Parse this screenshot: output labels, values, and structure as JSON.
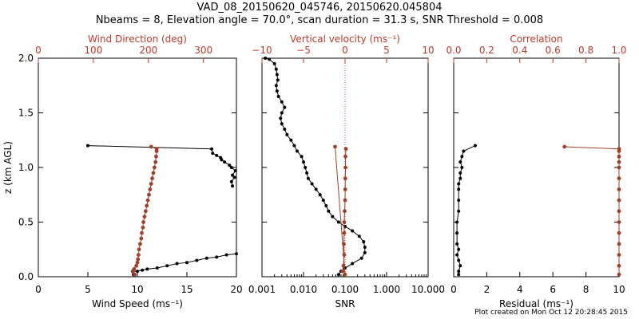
{
  "title": "VAD_08_20150620_045746, 20150620.045804",
  "subtitle": "Nbeams = 8, Elevation angle = 70.0°, scan duration = 31.3 s, SNR Threshold = 0.008",
  "footer": "Plot created on Mon Oct 12 20:28:45 2015",
  "colors": {
    "primary": "#000000",
    "accent": "#c0392b",
    "marker": "#a0402a"
  },
  "chart_data": [
    {
      "type": "line",
      "ylabel": "z (km AGL)",
      "ylim": [
        0,
        2
      ],
      "yticks": [
        "0.0",
        "0.5",
        "1.0",
        "1.5",
        "2.0"
      ],
      "x_bottom": {
        "label": "Wind Speed (ms⁻¹)",
        "lim": [
          0,
          20
        ],
        "ticks": [
          "0",
          "5",
          "10",
          "15",
          "20"
        ]
      },
      "x_top": {
        "label": "Wind Direction (deg)",
        "lim": [
          0,
          360
        ],
        "ticks": [
          "0",
          "100",
          "200",
          "300"
        ]
      },
      "series": [
        {
          "axis": "bottom",
          "color": "#000000",
          "points": [
            [
              20.0,
              0.21
            ],
            [
              19.0,
              0.2
            ],
            [
              18.0,
              0.18
            ],
            [
              17.0,
              0.17
            ],
            [
              16.0,
              0.15
            ],
            [
              15.0,
              0.13
            ],
            [
              14.0,
              0.12
            ],
            [
              13.0,
              0.1
            ],
            [
              12.0,
              0.08
            ],
            [
              11.0,
              0.07
            ],
            [
              10.5,
              0.06
            ],
            [
              10.0,
              0.05
            ],
            [
              9.5,
              0.05
            ],
            [
              9.6,
              0.02
            ],
            [
              19.6,
              0.83
            ],
            [
              19.5,
              0.87
            ],
            [
              19.8,
              0.91
            ],
            [
              19.6,
              0.93
            ],
            [
              19.9,
              0.97
            ],
            [
              19.5,
              1.0
            ],
            [
              19.3,
              1.02
            ],
            [
              18.8,
              1.05
            ],
            [
              18.5,
              1.07
            ],
            [
              18.4,
              1.09
            ],
            [
              18.0,
              1.11
            ],
            [
              17.6,
              1.13
            ],
            [
              17.5,
              1.17
            ],
            [
              5.0,
              1.2
            ]
          ]
        },
        {
          "axis": "top",
          "color": "#a0402a",
          "points": [
            [
              175,
              0.02
            ],
            [
              172,
              0.05
            ],
            [
              174,
              0.07
            ],
            [
              178,
              0.1
            ],
            [
              180,
              0.13
            ],
            [
              181,
              0.16
            ],
            [
              182,
              0.2
            ],
            [
              183,
              0.25
            ],
            [
              185,
              0.3
            ],
            [
              187,
              0.35
            ],
            [
              188,
              0.4
            ],
            [
              190,
              0.45
            ],
            [
              191,
              0.5
            ],
            [
              193,
              0.55
            ],
            [
              195,
              0.6
            ],
            [
              197,
              0.65
            ],
            [
              199,
              0.7
            ],
            [
              201,
              0.75
            ],
            [
              203,
              0.8
            ],
            [
              205,
              0.85
            ],
            [
              207,
              0.9
            ],
            [
              209,
              0.95
            ],
            [
              211,
              1.0
            ],
            [
              213,
              1.05
            ],
            [
              214,
              1.1
            ],
            [
              215,
              1.15
            ],
            [
              215,
              1.17
            ],
            [
              205,
              1.19
            ]
          ]
        }
      ]
    },
    {
      "type": "line",
      "ylim": [
        0,
        2
      ],
      "x_bottom": {
        "label": "SNR",
        "lim": [
          0.001,
          10
        ],
        "scale": "log",
        "ticks": [
          "0.001",
          "0.010",
          "0.100",
          "1.000",
          "10.000"
        ]
      },
      "x_top": {
        "label": "Vertical velocity (ms⁻¹)",
        "lim": [
          -10,
          10
        ],
        "ticks": [
          "−10",
          "−5",
          "0",
          "5",
          "10"
        ]
      },
      "series": [
        {
          "axis": "bottom",
          "color": "#000000",
          "points": [
            [
              0.07,
              0.02
            ],
            [
              0.08,
              0.05
            ],
            [
              0.1,
              0.08
            ],
            [
              0.15,
              0.12
            ],
            [
              0.25,
              0.17
            ],
            [
              0.3,
              0.22
            ],
            [
              0.3,
              0.27
            ],
            [
              0.28,
              0.32
            ],
            [
              0.22,
              0.37
            ],
            [
              0.15,
              0.42
            ],
            [
              0.1,
              0.46
            ],
            [
              0.07,
              0.5
            ],
            [
              0.05,
              0.55
            ],
            [
              0.04,
              0.6
            ],
            [
              0.035,
              0.65
            ],
            [
              0.03,
              0.7
            ],
            [
              0.025,
              0.75
            ],
            [
              0.02,
              0.8
            ],
            [
              0.016,
              0.85
            ],
            [
              0.013,
              0.9
            ],
            [
              0.012,
              0.95
            ],
            [
              0.011,
              1.0
            ],
            [
              0.01,
              1.05
            ],
            [
              0.009,
              1.1
            ],
            [
              0.007,
              1.15
            ],
            [
              0.006,
              1.2
            ],
            [
              0.005,
              1.25
            ],
            [
              0.004,
              1.3
            ],
            [
              0.0035,
              1.35
            ],
            [
              0.003,
              1.4
            ],
            [
              0.0028,
              1.45
            ],
            [
              0.003,
              1.5
            ],
            [
              0.0035,
              1.55
            ],
            [
              0.003,
              1.6
            ],
            [
              0.0025,
              1.65
            ],
            [
              0.0023,
              1.7
            ],
            [
              0.0022,
              1.75
            ],
            [
              0.0024,
              1.8
            ],
            [
              0.0023,
              1.85
            ],
            [
              0.0022,
              1.9
            ],
            [
              0.002,
              1.95
            ],
            [
              0.0015,
              1.99
            ],
            [
              0.0012,
              2.0
            ]
          ]
        },
        {
          "axis": "top",
          "color": "#a0402a",
          "points": [
            [
              0.1,
              1.17
            ],
            [
              0.05,
              1.1
            ],
            [
              0.05,
              1.0
            ],
            [
              0.03,
              0.9
            ],
            [
              0.02,
              0.8
            ],
            [
              0.0,
              0.7
            ],
            [
              -0.05,
              0.6
            ],
            [
              -0.1,
              0.5
            ],
            [
              -0.1,
              0.4
            ],
            [
              -0.15,
              0.3
            ],
            [
              -0.1,
              0.2
            ],
            [
              -0.2,
              0.1
            ],
            [
              -0.3,
              0.05
            ],
            [
              0.0,
              0.02
            ],
            [
              -1.2,
              1.19
            ]
          ]
        }
      ]
    },
    {
      "type": "line",
      "ylim": [
        0,
        2
      ],
      "x_bottom": {
        "label": "Residual (ms⁻¹)",
        "lim": [
          0,
          10
        ],
        "ticks": [
          "0",
          "2",
          "4",
          "6",
          "8",
          "10"
        ]
      },
      "x_top": {
        "label": "Correlation",
        "lim": [
          0,
          1
        ],
        "ticks": [
          "0.0",
          "0.2",
          "0.4",
          "0.6",
          "0.8",
          "1.0"
        ]
      },
      "series": [
        {
          "axis": "bottom",
          "color": "#000000",
          "points": [
            [
              0.3,
              0.02
            ],
            [
              0.3,
              0.05
            ],
            [
              0.4,
              0.1
            ],
            [
              0.3,
              0.15
            ],
            [
              0.2,
              0.2
            ],
            [
              0.3,
              0.25
            ],
            [
              0.2,
              0.3
            ],
            [
              0.2,
              0.4
            ],
            [
              0.2,
              0.5
            ],
            [
              0.3,
              0.6
            ],
            [
              0.3,
              0.7
            ],
            [
              0.3,
              0.8
            ],
            [
              0.3,
              0.85
            ],
            [
              0.4,
              0.9
            ],
            [
              0.4,
              0.95
            ],
            [
              0.5,
              1.0
            ],
            [
              0.4,
              1.05
            ],
            [
              0.5,
              1.1
            ],
            [
              0.6,
              1.15
            ],
            [
              1.3,
              1.2
            ]
          ]
        },
        {
          "axis": "top",
          "color": "#a0402a",
          "points": [
            [
              1.0,
              0.02
            ],
            [
              1.0,
              0.1
            ],
            [
              1.0,
              0.2
            ],
            [
              1.0,
              0.3
            ],
            [
              1.0,
              0.4
            ],
            [
              1.0,
              0.5
            ],
            [
              1.0,
              0.6
            ],
            [
              1.0,
              0.7
            ],
            [
              1.0,
              0.8
            ],
            [
              1.0,
              0.9
            ],
            [
              1.0,
              1.0
            ],
            [
              1.0,
              1.05
            ],
            [
              1.0,
              1.1
            ],
            [
              1.0,
              1.15
            ],
            [
              1.0,
              1.17
            ],
            [
              0.67,
              1.19
            ]
          ]
        }
      ]
    }
  ]
}
